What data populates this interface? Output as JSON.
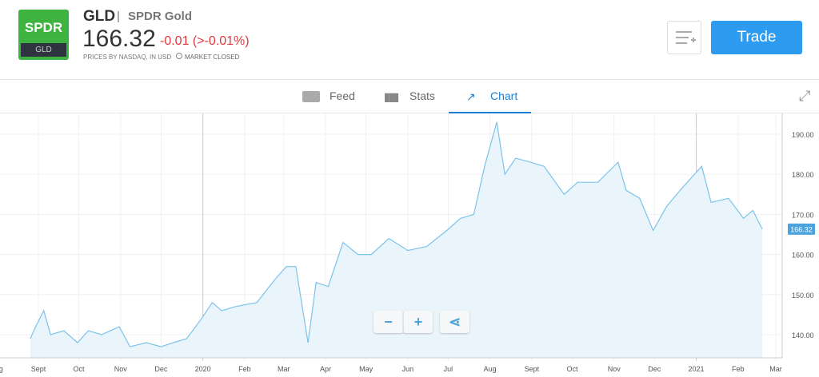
{
  "instrument": {
    "logo_top": "SPDR",
    "logo_bottom": "GLD",
    "symbol": "GLD",
    "separator": "|",
    "name": "SPDR Gold",
    "price": "166.32",
    "change": "-0.01 (>-0.01%)",
    "source": "PRICES BY NASDAQ, IN USD",
    "market_status": "MARKET CLOSED"
  },
  "actions": {
    "trade": "Trade"
  },
  "tabs": [
    {
      "label": "Feed",
      "icon": "feed-icon"
    },
    {
      "label": "Stats",
      "icon": "stats-icon"
    },
    {
      "label": "Chart",
      "icon": "chart-icon",
      "active": true
    }
  ],
  "colors": {
    "accent": "#2d9cf0",
    "negative": "#e0383e",
    "line": "#7cc3ea",
    "fill": "#eaf4fb"
  },
  "chart_data": {
    "type": "area",
    "y_ticks": [
      "140.00",
      "150.00",
      "160.00",
      "170.00",
      "180.00",
      "190.00"
    ],
    "x_ticks": [
      [
        "2019-08-01",
        "Aug"
      ],
      [
        "2019-09-01",
        "Sept"
      ],
      [
        "2019-10-01",
        "Oct"
      ],
      [
        "2019-11-01",
        "Nov"
      ],
      [
        "2019-12-01",
        "Dec"
      ],
      [
        "2020-01-01",
        "2020"
      ],
      [
        "2020-02-01",
        "Feb"
      ],
      [
        "2020-03-01",
        "Mar"
      ],
      [
        "2020-04-01",
        "Apr"
      ],
      [
        "2020-05-01",
        "May"
      ],
      [
        "2020-06-01",
        "Jun"
      ],
      [
        "2020-07-01",
        "Jul"
      ],
      [
        "2020-08-01",
        "Aug"
      ],
      [
        "2020-09-01",
        "Sept"
      ],
      [
        "2020-10-01",
        "Oct"
      ],
      [
        "2020-11-01",
        "Nov"
      ],
      [
        "2020-12-01",
        "Dec"
      ],
      [
        "2021-01-01",
        "2021"
      ],
      [
        "2021-02-01",
        "Feb"
      ],
      [
        "2021-03-01",
        "Mar"
      ]
    ],
    "last_label": "166.32",
    "points": [
      [
        "2019-08-26",
        139
      ],
      [
        "2019-08-30",
        142
      ],
      [
        "2019-09-05",
        146
      ],
      [
        "2019-09-10",
        140
      ],
      [
        "2019-09-20",
        141
      ],
      [
        "2019-09-30",
        138
      ],
      [
        "2019-10-08",
        141
      ],
      [
        "2019-10-18",
        140
      ],
      [
        "2019-10-31",
        142
      ],
      [
        "2019-11-08",
        137
      ],
      [
        "2019-11-20",
        138
      ],
      [
        "2019-12-01",
        137
      ],
      [
        "2019-12-10",
        138
      ],
      [
        "2019-12-20",
        139
      ],
      [
        "2019-12-31",
        144
      ],
      [
        "2020-01-08",
        148
      ],
      [
        "2020-01-15",
        146
      ],
      [
        "2020-01-25",
        147
      ],
      [
        "2020-02-10",
        148
      ],
      [
        "2020-02-24",
        154
      ],
      [
        "2020-03-03",
        157
      ],
      [
        "2020-03-10",
        157
      ],
      [
        "2020-03-19",
        138
      ],
      [
        "2020-03-25",
        153
      ],
      [
        "2020-04-03",
        152
      ],
      [
        "2020-04-14",
        163
      ],
      [
        "2020-04-25",
        160
      ],
      [
        "2020-05-05",
        160
      ],
      [
        "2020-05-18",
        164
      ],
      [
        "2020-06-01",
        161
      ],
      [
        "2020-06-15",
        162
      ],
      [
        "2020-06-30",
        166
      ],
      [
        "2020-07-10",
        169
      ],
      [
        "2020-07-20",
        170
      ],
      [
        "2020-07-28",
        182
      ],
      [
        "2020-08-06",
        193
      ],
      [
        "2020-08-12",
        180
      ],
      [
        "2020-08-20",
        184
      ],
      [
        "2020-08-31",
        183
      ],
      [
        "2020-09-10",
        182
      ],
      [
        "2020-09-25",
        175
      ],
      [
        "2020-10-05",
        178
      ],
      [
        "2020-10-20",
        178
      ],
      [
        "2020-11-04",
        183
      ],
      [
        "2020-11-10",
        176
      ],
      [
        "2020-11-20",
        174
      ],
      [
        "2020-11-30",
        166
      ],
      [
        "2020-12-10",
        172
      ],
      [
        "2020-12-20",
        176
      ],
      [
        "2021-01-05",
        182
      ],
      [
        "2021-01-12",
        173
      ],
      [
        "2021-01-25",
        174
      ],
      [
        "2021-02-05",
        169
      ],
      [
        "2021-02-12",
        171
      ],
      [
        "2021-02-19",
        166.32
      ]
    ]
  },
  "controls": {
    "zoom_out": "−",
    "zoom_in": "+"
  }
}
